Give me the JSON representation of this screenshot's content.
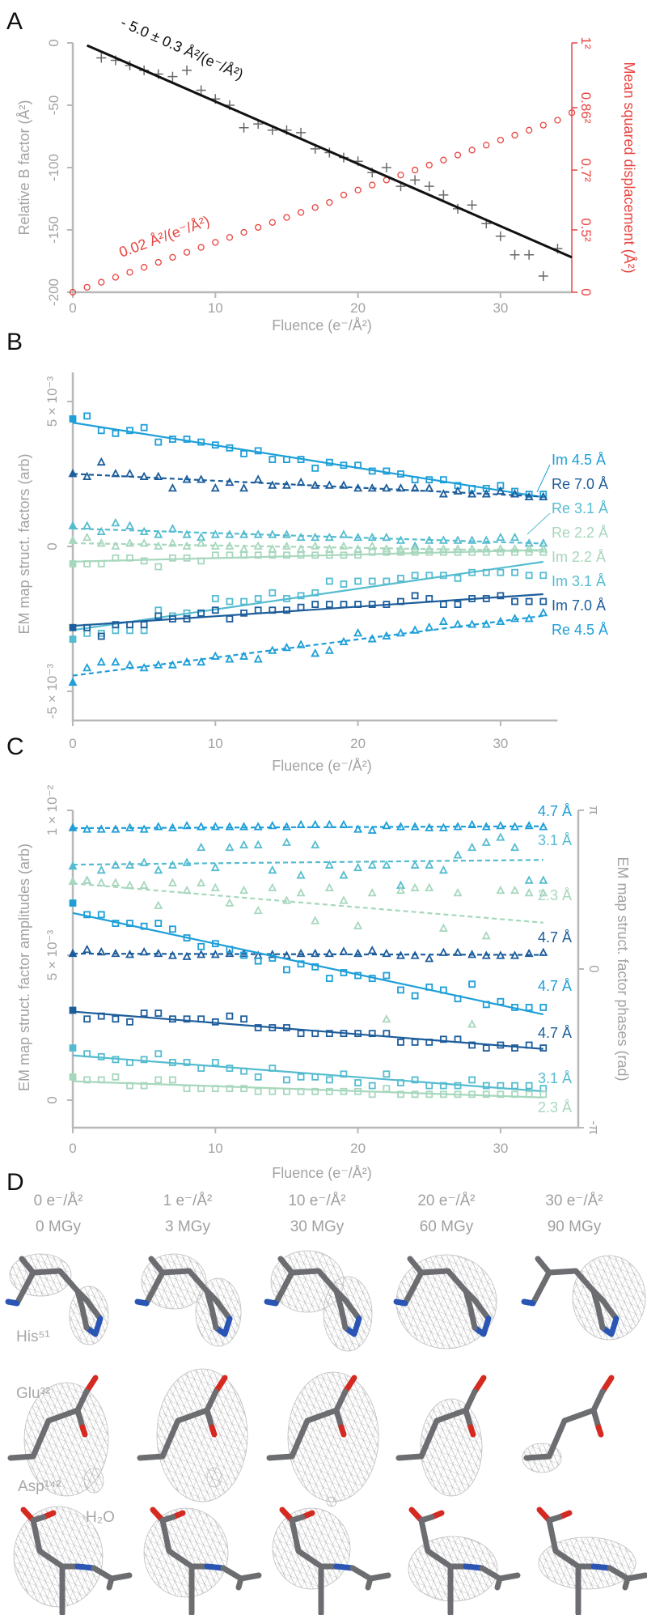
{
  "panel_labels": {
    "a": "A",
    "b": "B",
    "c": "C",
    "d": "D"
  },
  "colors": {
    "light_blue": "#1e9fd8",
    "dark_blue": "#1d5d9b",
    "teal": "#55bcd0",
    "green": "#a7d7bd",
    "red": "#e8433f",
    "black": "#111111",
    "gray": "#8a8a8a"
  },
  "chart_data": [
    {
      "type": "scatter",
      "panel": "A",
      "xlabel": "Fluence (e⁻/Å²)",
      "ylabel": "Relative B factor (Å²)",
      "y2label": "Mean squared displacement (Å²)",
      "xlim": [
        0,
        35
      ],
      "ylim": [
        -200,
        0
      ],
      "y2lim": [
        0,
        1
      ],
      "xticks": [
        "0",
        "10",
        "20",
        "30"
      ],
      "yticks": [
        "0",
        "-50",
        "-100",
        "-150",
        "-200"
      ],
      "y2ticks": [
        {
          "value": 1,
          "label": "1²"
        },
        {
          "value": 0.74,
          "label": "0.86²"
        },
        {
          "value": 0.49,
          "label": "0.7²"
        },
        {
          "value": 0.25,
          "label": "0.5²"
        },
        {
          "value": 0,
          "label": "0"
        }
      ],
      "bfactor": {
        "x": [
          2,
          3,
          4,
          5,
          6,
          7,
          8,
          9,
          10,
          11,
          12,
          13,
          14,
          15,
          16,
          17,
          18,
          19,
          20,
          21,
          22,
          23,
          24,
          25,
          26,
          27,
          28,
          29,
          30,
          31,
          32,
          33,
          34
        ],
        "y": [
          -12,
          -14,
          -18,
          -22,
          -25,
          -27,
          -22,
          -38,
          -45,
          -50,
          -68,
          -65,
          -70,
          -70,
          -72,
          -85,
          -88,
          -92,
          -95,
          -104,
          -100,
          -115,
          -110,
          -115,
          -122,
          -133,
          -130,
          -145,
          -155,
          -170,
          -170,
          -187,
          -165
        ],
        "fit": {
          "slope": -5.0,
          "intercept": 3,
          "x_range": [
            1,
            35
          ]
        },
        "annotation": "- 5.0 ± 0.3 Å²/(e⁻/Å²)"
      },
      "msd": {
        "x": [
          0,
          1,
          2,
          3,
          4,
          5,
          6,
          7,
          8,
          9,
          10,
          11,
          12,
          13,
          14,
          15,
          16,
          17,
          18,
          19,
          20,
          21,
          22,
          23,
          24,
          25,
          26,
          27,
          28,
          29,
          30,
          31,
          32,
          33,
          34,
          35
        ],
        "y": [
          0,
          0.02,
          0.04,
          0.06,
          0.08,
          0.1,
          0.12,
          0.14,
          0.16,
          0.18,
          0.2,
          0.22,
          0.24,
          0.26,
          0.28,
          0.3,
          0.32,
          0.34,
          0.36,
          0.39,
          0.41,
          0.43,
          0.45,
          0.47,
          0.49,
          0.51,
          0.53,
          0.55,
          0.57,
          0.59,
          0.61,
          0.63,
          0.65,
          0.67,
          0.69,
          0.72
        ],
        "annotation": "0.02 Å²/(e⁻/Å²)"
      }
    },
    {
      "type": "scatter",
      "panel": "B",
      "xlabel": "Fluence (e⁻/Å²)",
      "ylabel": "EM map struct. factors (arb)",
      "units": "×10⁻³",
      "xlim": [
        0,
        34
      ],
      "ylim": [
        -6.5,
        6
      ],
      "xticks": [
        "0",
        "10",
        "20",
        "30"
      ],
      "yticks": [
        {
          "value": 5,
          "label": "5 × 10⁻³"
        },
        {
          "value": 0,
          "label": "0"
        },
        {
          "value": -5,
          "label": "-5 × 10⁻³"
        }
      ],
      "series": [
        {
          "name": "Im 4.5 Å",
          "color": "#1e9fd8",
          "marker": "square",
          "line": "solid",
          "values": [
            4.4,
            4.5,
            4.0,
            3.9,
            4.0,
            4.1,
            3.6,
            3.7,
            3.7,
            3.6,
            3.5,
            3.4,
            3.2,
            3.3,
            3.0,
            3.0,
            3.0,
            2.7,
            2.9,
            2.8,
            2.8,
            2.6,
            2.6,
            2.5,
            2.3,
            2.3,
            2.3,
            2.1,
            2.0,
            2.0,
            2.1,
            1.9,
            1.8,
            1.8
          ]
        },
        {
          "name": "Re 7.0 Å",
          "color": "#1d5d9b",
          "marker": "triangle",
          "line": "dashed",
          "values": [
            2.5,
            2.4,
            2.9,
            2.5,
            2.5,
            2.4,
            2.4,
            2.0,
            2.3,
            2.3,
            2.0,
            2.2,
            2.0,
            2.3,
            2.1,
            2.1,
            2.2,
            2.1,
            2.1,
            2.1,
            2.0,
            2.0,
            2.0,
            2.0,
            2.0,
            2.0,
            1.8,
            1.9,
            1.8,
            1.8,
            1.9,
            1.8,
            1.7,
            1.7
          ]
        },
        {
          "name": "Re 3.1 Å",
          "color": "#55bcd0",
          "marker": "triangle",
          "line": "dashed",
          "values": [
            0.7,
            0.7,
            0.5,
            0.8,
            0.7,
            0.5,
            0.4,
            0.6,
            0.4,
            0.3,
            0.4,
            0.4,
            0.4,
            0.4,
            0.4,
            0.4,
            0.3,
            0.3,
            0.3,
            0.4,
            0.3,
            0.3,
            0.3,
            0.2,
            0.0,
            0.2,
            0.2,
            0.2,
            0.2,
            0.2,
            0.3,
            0.3,
            0.1,
            0.1
          ]
        },
        {
          "name": "Re 2.2 Å",
          "color": "#a7d7bd",
          "marker": "triangle",
          "line": "dashed",
          "values": [
            0.2,
            0.3,
            0.1,
            0.0,
            0.1,
            0.1,
            0.0,
            0.1,
            0.0,
            0.1,
            0.0,
            0.0,
            -0.1,
            0.0,
            -0.1,
            0.0,
            -0.1,
            0.0,
            -0.1,
            0.0,
            -0.1,
            0.0,
            -0.1,
            -0.1,
            -0.1,
            -0.1,
            -0.1,
            -0.1,
            -0.1,
            -0.1,
            -0.1,
            -0.1,
            -0.1,
            -0.1
          ]
        },
        {
          "name": "Im 2.2 Å",
          "color": "#a7d7bd",
          "marker": "square",
          "line": "solid",
          "values": [
            -0.6,
            -0.6,
            -0.6,
            -0.4,
            -0.4,
            -0.5,
            -0.7,
            -0.4,
            -0.4,
            -0.5,
            -0.3,
            -0.3,
            -0.3,
            -0.3,
            -0.3,
            -0.3,
            -0.3,
            -0.3,
            -0.3,
            -0.3,
            -0.3,
            -0.2,
            -0.2,
            -0.2,
            -0.2,
            -0.2,
            -0.2,
            -0.2,
            -0.2,
            -0.2,
            -0.2,
            -0.2,
            -0.2,
            -0.2
          ]
        },
        {
          "name": "Im 3.1 Å",
          "color": "#55bcd0",
          "marker": "square",
          "line": "solid",
          "values": [
            -3.2,
            -3.0,
            -3.0,
            -2.9,
            -2.9,
            -2.9,
            -2.2,
            -2.4,
            -2.3,
            -2.3,
            -1.8,
            -1.9,
            -1.9,
            -1.8,
            -1.6,
            -1.8,
            -1.7,
            -1.6,
            -1.2,
            -1.3,
            -1.2,
            -1.2,
            -1.2,
            -1.1,
            -1.0,
            -1.0,
            -1.0,
            -1.1,
            -0.9,
            -0.9,
            -0.9,
            -0.9,
            -1.0,
            -1.0
          ]
        },
        {
          "name": "Im 7.0 Å",
          "color": "#1d5d9b",
          "marker": "square",
          "line": "solid",
          "values": [
            -2.8,
            -2.8,
            -3.1,
            -2.7,
            -2.7,
            -2.7,
            -2.4,
            -2.5,
            -2.5,
            -2.3,
            -2.2,
            -2.5,
            -2.3,
            -2.2,
            -2.2,
            -2.2,
            -2.1,
            -2.0,
            -2.0,
            -2.0,
            -2.0,
            -2.0,
            -2.0,
            -1.9,
            -1.7,
            -1.8,
            -2.0,
            -2.0,
            -1.8,
            -1.8,
            -1.7,
            -1.9,
            -1.9,
            -1.9
          ]
        },
        {
          "name": "Re 4.5 Å",
          "color": "#1e9fd8",
          "marker": "triangle",
          "line": "dashed",
          "values": [
            -4.7,
            -4.2,
            -4.0,
            -4.0,
            -4.1,
            -4.2,
            -4.1,
            -4.1,
            -4.0,
            -4.0,
            -3.8,
            -3.9,
            -3.8,
            -3.9,
            -3.6,
            -3.5,
            -3.4,
            -3.7,
            -3.6,
            -3.3,
            -3.0,
            -3.2,
            -3.1,
            -3.0,
            -2.9,
            -2.8,
            -2.6,
            -2.7,
            -2.7,
            -2.7,
            -2.6,
            -2.5,
            -2.5,
            -2.3
          ]
        }
      ]
    },
    {
      "type": "scatter",
      "panel": "C",
      "xlabel": "Fluence (e⁻/Å²)",
      "ylabel": "EM map struct. factor amplitudes (arb)",
      "y2label": "EM map struct. factor phases (rad)",
      "units": "×10⁻³",
      "xlim": [
        0,
        35
      ],
      "ylim": [
        -0.95,
        10
      ],
      "y2lim": [
        -3.1416,
        3.1416
      ],
      "xticks": [
        "0",
        "10",
        "20",
        "30"
      ],
      "yticks": [
        {
          "value": 10,
          "label": "1 × 10⁻²"
        },
        {
          "value": 5,
          "label": "5 × 10⁻³"
        },
        {
          "value": 0,
          "label": "0"
        }
      ],
      "y2ticks": [
        {
          "value": 3.1416,
          "label": "π"
        },
        {
          "value": 0,
          "label": "0"
        },
        {
          "value": -3.1416,
          "label": "-π"
        }
      ],
      "series": [
        {
          "name": "4.7 Å",
          "quantity": "phase",
          "axis": "right",
          "color": "#1e9fd8",
          "marker": "triangle",
          "line": "dashed",
          "values": [
            2.79,
            2.76,
            2.76,
            2.76,
            2.79,
            2.76,
            2.81,
            2.79,
            2.83,
            2.81,
            2.81,
            2.81,
            2.81,
            2.81,
            2.83,
            2.81,
            2.85,
            2.85,
            2.85,
            2.85,
            2.76,
            2.74,
            2.83,
            2.81,
            2.81,
            2.79,
            2.79,
            2.81,
            2.85,
            2.81,
            2.83,
            2.81,
            2.83,
            2.81
          ]
        },
        {
          "name": "3.1 Å",
          "quantity": "phase",
          "axis": "right",
          "color": "#55bcd0",
          "marker": "triangle",
          "line": "dashed",
          "values": [
            2.03,
            1.75,
            1.95,
            2.05,
            2.05,
            2.1,
            1.95,
            2.05,
            2.1,
            2.4,
            2.0,
            2.4,
            2.45,
            2.45,
            1.95,
            2.5,
            1.85,
            2.45,
            2.05,
            1.85,
            2.0,
            2.05,
            2.05,
            1.65,
            2.05,
            2.05,
            1.95,
            2.25,
            2.4,
            2.5,
            2.6,
            2.4,
            1.75,
            1.75
          ]
        },
        {
          "name": "2.3 Å",
          "quantity": "phase",
          "axis": "right",
          "color": "#a7d7bd",
          "marker": "triangle",
          "line": "dashed",
          "values": [
            1.73,
            1.75,
            1.7,
            1.7,
            1.65,
            1.65,
            1.25,
            1.7,
            1.55,
            1.7,
            1.6,
            1.3,
            1.55,
            1.15,
            1.6,
            1.35,
            1.5,
            0.95,
            1.6,
            1.35,
            0.85,
            1.5,
            -1.0,
            1.55,
            1.6,
            1.6,
            0.8,
            1.5,
            -1.1,
            0.65,
            1.55,
            1.55,
            1.5,
            1.5
          ]
        },
        {
          "name": "4.7 Å",
          "quantity": "phase",
          "axis": "right",
          "color": "#1d5d9b",
          "marker": "triangle",
          "line": "dashed",
          "values": [
            0.3,
            0.38,
            0.33,
            0.3,
            0.28,
            0.33,
            0.3,
            0.26,
            0.24,
            0.28,
            0.28,
            0.3,
            0.3,
            0.26,
            0.28,
            0.26,
            0.3,
            0.3,
            0.3,
            0.34,
            0.3,
            0.36,
            0.3,
            0.26,
            0.26,
            0.2,
            0.32,
            0.32,
            0.28,
            0.26,
            0.26,
            0.26,
            0.3,
            0.32
          ]
        },
        {
          "name": "4.7 Å",
          "quantity": "amplitude",
          "axis": "left",
          "color": "#1e9fd8",
          "marker": "square",
          "line": "solid",
          "values": [
            6.8,
            6.4,
            6.4,
            6.1,
            6.1,
            6.0,
            6.1,
            5.9,
            5.6,
            5.3,
            5.4,
            5.2,
            5.0,
            4.8,
            4.9,
            4.5,
            4.7,
            4.6,
            4.2,
            4.4,
            4.3,
            4.2,
            4.3,
            3.8,
            3.6,
            3.9,
            3.8,
            3.5,
            4.0,
            3.3,
            3.4,
            3.2,
            3.2,
            3.2
          ]
        },
        {
          "name": "4.7 Å",
          "quantity": "amplitude",
          "axis": "left",
          "color": "#1d5d9b",
          "marker": "square",
          "line": "solid",
          "values": [
            3.1,
            2.8,
            2.9,
            2.8,
            2.7,
            3.0,
            3.0,
            2.8,
            2.8,
            2.8,
            2.7,
            2.9,
            2.8,
            2.5,
            2.5,
            2.5,
            2.3,
            2.3,
            2.3,
            2.3,
            2.3,
            2.3,
            2.3,
            2.0,
            2.0,
            2.0,
            2.1,
            2.1,
            1.9,
            1.8,
            1.9,
            1.8,
            1.9,
            1.8
          ]
        },
        {
          "name": "3.1 Å",
          "quantity": "amplitude",
          "axis": "left",
          "color": "#55bcd0",
          "marker": "square",
          "line": "solid",
          "values": [
            1.8,
            1.6,
            1.5,
            1.4,
            1.3,
            1.4,
            1.6,
            1.3,
            1.3,
            1.1,
            1.3,
            1.1,
            1.0,
            0.8,
            1.1,
            0.7,
            0.8,
            0.8,
            0.7,
            0.9,
            0.6,
            0.5,
            0.9,
            0.6,
            0.7,
            0.5,
            0.5,
            0.5,
            0.7,
            0.5,
            0.5,
            0.5,
            0.5,
            0.4
          ]
        },
        {
          "name": "2.3 Å",
          "quantity": "amplitude",
          "axis": "left",
          "color": "#a7d7bd",
          "marker": "square",
          "line": "solid",
          "values": [
            0.8,
            0.7,
            0.7,
            0.8,
            0.5,
            0.5,
            0.7,
            0.7,
            0.4,
            0.4,
            0.4,
            0.4,
            0.4,
            0.3,
            0.3,
            0.3,
            0.3,
            0.3,
            0.3,
            0.3,
            0.3,
            0.2,
            0.4,
            0.2,
            0.2,
            0.2,
            0.2,
            0.2,
            0.2,
            0.2,
            0.2,
            0.2,
            0.2,
            0.2
          ]
        }
      ]
    }
  ],
  "panel_d": {
    "columns": [
      {
        "fluence": "0 e⁻/Å²",
        "dose": "0 MGy"
      },
      {
        "fluence": "1 e⁻/Å²",
        "dose": "3 MGy"
      },
      {
        "fluence": "10 e⁻/Å²",
        "dose": "30 MGy"
      },
      {
        "fluence": "20 e⁻/Å²",
        "dose": "60 MGy"
      },
      {
        "fluence": "30 e⁻/Å²",
        "dose": "90 MGy"
      }
    ],
    "residues": {
      "his": "His⁵¹",
      "glu": "Glu³²",
      "asp": "Asp¹⁴²",
      "water": "H₂O"
    }
  }
}
